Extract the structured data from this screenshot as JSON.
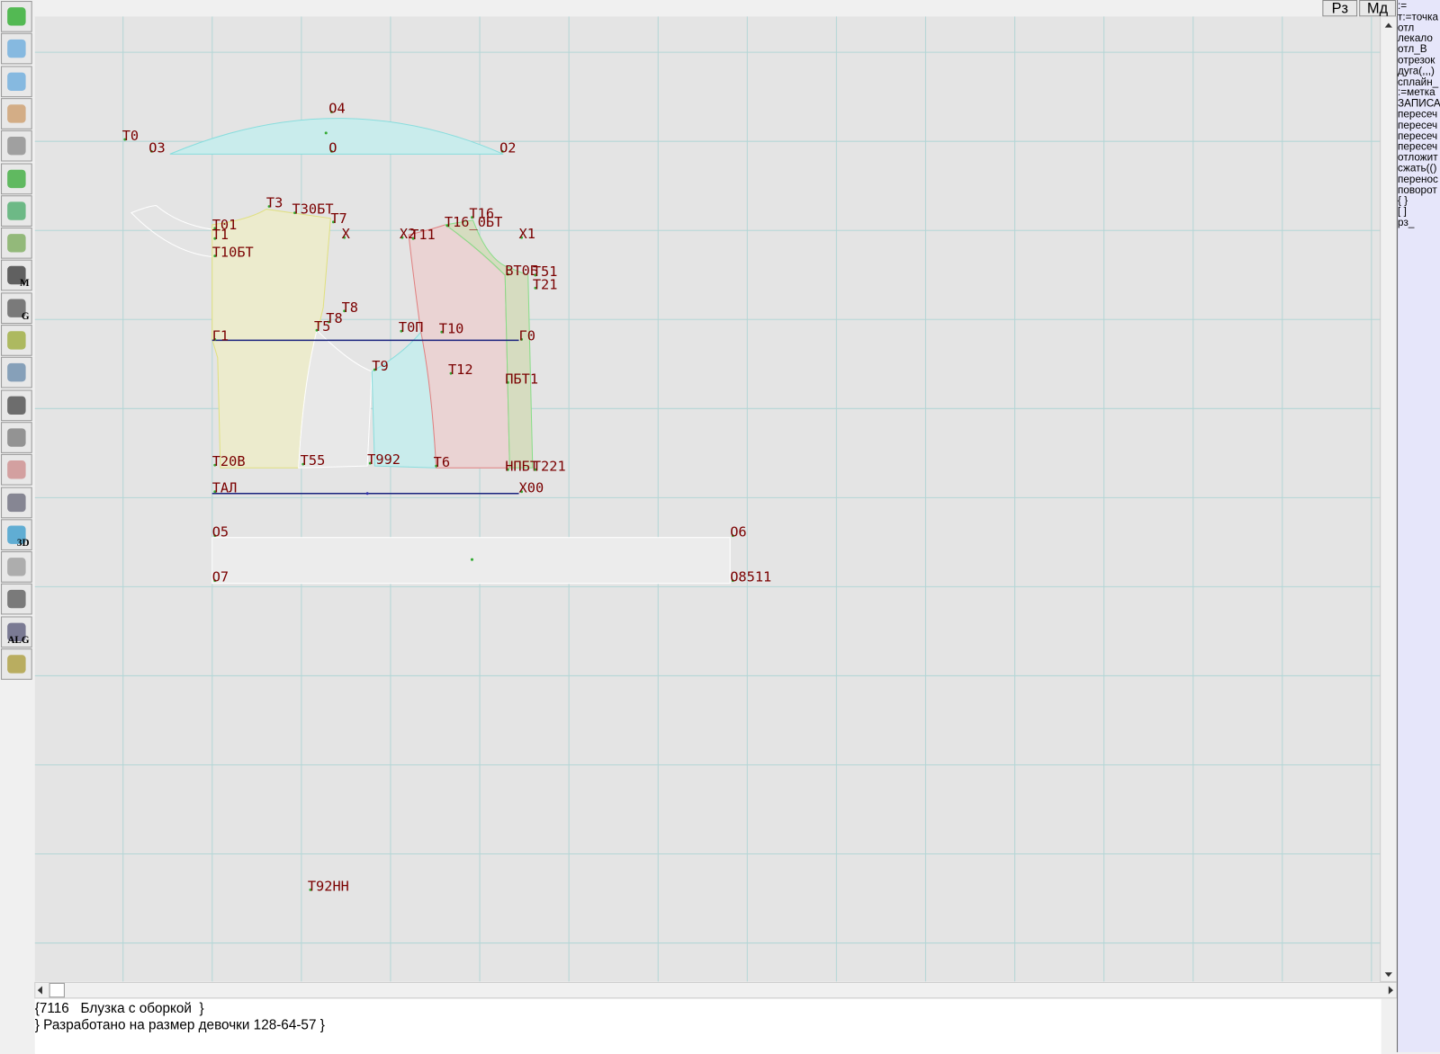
{
  "top_buttons": [
    "Рз",
    "Мд"
  ],
  "toolbar_texts": [
    "M",
    "G",
    "3D",
    "ALG"
  ],
  "canvas": {
    "labels": [
      "Т0",
      "О3",
      "О4",
      "О",
      "О2",
      "Т3",
      "Т30БТ",
      "Т7",
      "Т01",
      "Т1",
      "Т10БТ",
      "Х",
      "Х2",
      "Т11",
      "Т16_0БТ",
      "Т16",
      "Х1",
      "ВТ0Б",
      "Т51",
      "Т21",
      "Т8",
      "Т8",
      "Т5",
      "Г1",
      "Т0П",
      "Т10",
      "Г0",
      "Т9",
      "Т12",
      "ПБТ1",
      "Т20В",
      "Т55",
      "Т992",
      "Т6",
      "НПБТ",
      "Т221",
      "ТАЛ",
      "Х00",
      "О5",
      "О6",
      "О7",
      "О8511",
      "Т92НН"
    ]
  },
  "commands": [
    ":=",
    "т:=точка",
    "отл",
    "лекало",
    "отл_В",
    "отрезок",
    "дуга(,,,)",
    "сплайн_",
    ":=метка",
    "ЗАПИСА",
    "пересеч",
    "пересеч",
    "пересеч",
    "пересеч",
    "отложит",
    "сжать(()",
    "перенос",
    "поворот",
    "{ }",
    "[ ]",
    "рз_"
  ],
  "notes": [
    "{7116   Блузка с оборкой  }",
    "} Разработано на размер девочки 128-64-57 }"
  ]
}
